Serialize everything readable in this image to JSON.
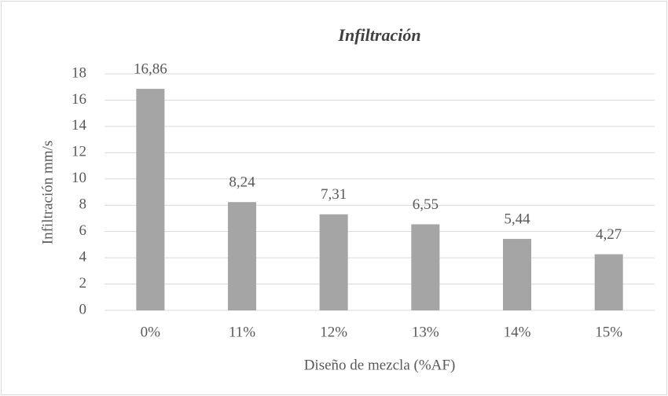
{
  "chart_data": {
    "type": "bar",
    "title": "Infiltración",
    "x_label": "Diseño de mezcla (%AF)",
    "y_label": "Infiltración mm/s",
    "categories": [
      "0%",
      "11%",
      "12%",
      "13%",
      "14%",
      "15%"
    ],
    "values": [
      16.86,
      8.24,
      7.31,
      6.55,
      5.44,
      4.27
    ],
    "value_labels": [
      "16,86",
      "8,24",
      "7,31",
      "6,55",
      "5,44",
      "4,27"
    ],
    "color": "#a5a5a5",
    "ylim": [
      0,
      18
    ],
    "yticks": [
      0,
      2,
      4,
      6,
      8,
      10,
      12,
      14,
      16,
      18
    ],
    "grid": true
  }
}
